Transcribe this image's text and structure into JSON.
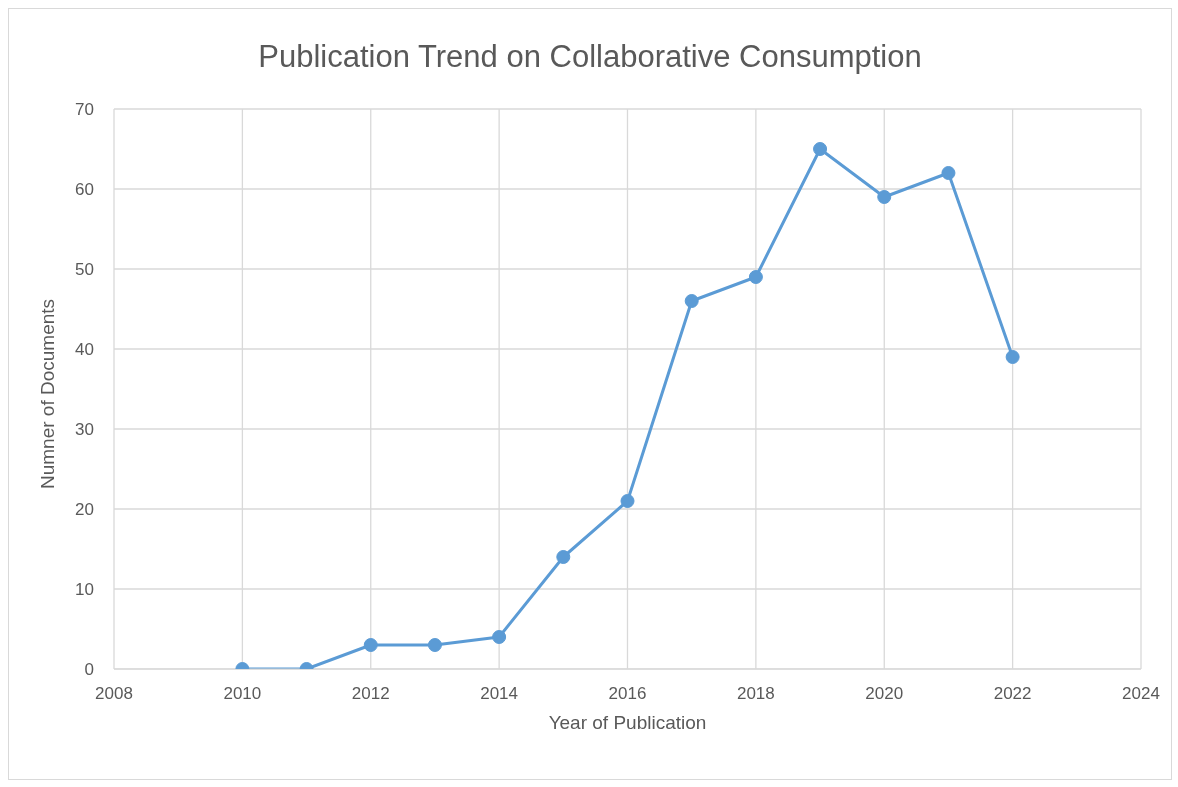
{
  "chart_data": {
    "type": "line",
    "title": "Publication Trend on Collaborative Consumption",
    "xlabel": "Year of Publication",
    "ylabel": "Numner of Documents",
    "x": [
      2010,
      2011,
      2012,
      2013,
      2014,
      2015,
      2016,
      2017,
      2018,
      2019,
      2020,
      2021,
      2022
    ],
    "series": [
      {
        "color": "#5b9bd5",
        "values": [
          0,
          0,
          3,
          3,
          4,
          14,
          21,
          46,
          49,
          65,
          59,
          62,
          39
        ]
      }
    ],
    "xlim": [
      2008,
      2024
    ],
    "xticks": [
      2008,
      2010,
      2012,
      2014,
      2016,
      2018,
      2020,
      2022,
      2024
    ],
    "ylim": [
      0,
      70
    ],
    "yticks": [
      0,
      10,
      20,
      30,
      40,
      50,
      60,
      70
    ],
    "grid": true,
    "marker": "circle",
    "line_style": "solid",
    "legend": false
  }
}
